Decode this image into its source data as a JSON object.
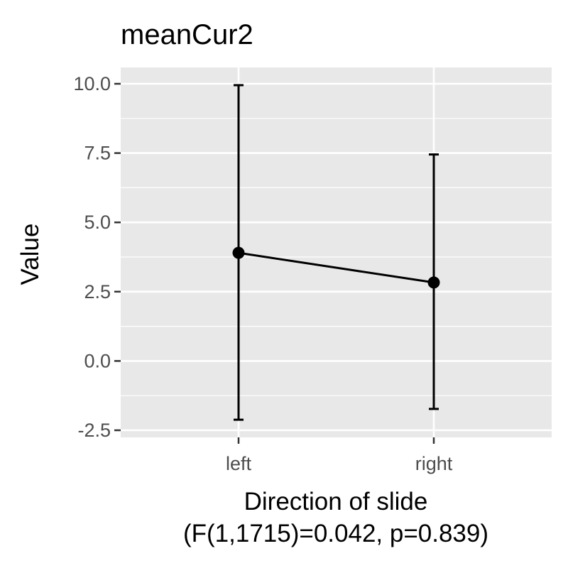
{
  "chart_data": {
    "type": "line",
    "title": "meanCur2",
    "xlabel": "Direction of slide",
    "xlabel_sub": "(F(1,1715)=0.042, p=0.839)",
    "ylabel": "Value",
    "categories": [
      "left",
      "right"
    ],
    "series": [
      {
        "values": [
          3.9,
          2.83
        ],
        "error_lower": [
          -2.12,
          -1.73
        ],
        "error_upper": [
          9.95,
          7.45
        ]
      }
    ],
    "ylim": [
      -2.5,
      10.0
    ],
    "yticks": [
      "-2.5",
      "0.0",
      "2.5",
      "5.0",
      "7.5",
      "10.0"
    ],
    "grid": true,
    "legend": "none",
    "colors": {
      "panel": "#e8e8e8",
      "grid": "#ffffff",
      "line": "#000000",
      "tick_text": "#4d4d4d",
      "tick_mark": "#333333"
    }
  }
}
